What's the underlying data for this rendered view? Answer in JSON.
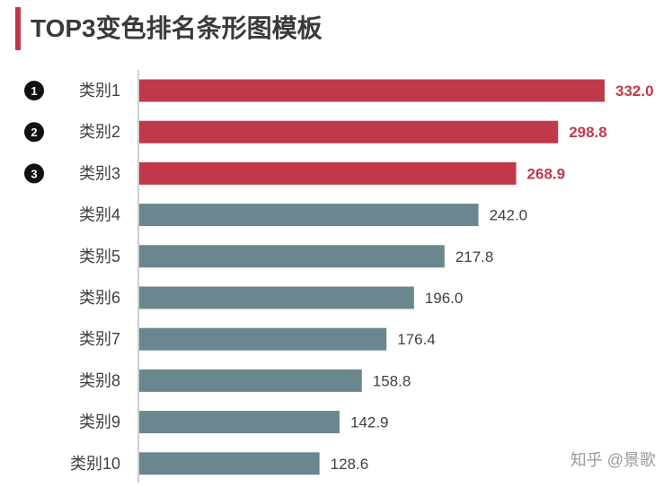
{
  "header": {
    "title": "TOP3变色排名条形图模板"
  },
  "watermark": "知乎 @景歌",
  "colors": {
    "top": "#c0394b",
    "rest": "#6a878f",
    "axis": "#bfbfbf",
    "title_bar": "#c0394b"
  },
  "chart_data": {
    "type": "bar",
    "orientation": "horizontal",
    "title": "TOP3变色排名条形图模板",
    "categories": [
      "类别1",
      "类别2",
      "类别3",
      "类别4",
      "类别5",
      "类别6",
      "类别7",
      "类别8",
      "类别9",
      "类别10"
    ],
    "values": [
      332.0,
      298.8,
      268.9,
      242.0,
      217.8,
      196.0,
      176.4,
      158.8,
      142.9,
      128.6
    ],
    "value_labels": [
      "332.0",
      "298.8",
      "268.9",
      "242.0",
      "217.8",
      "196.0",
      "176.4",
      "158.8",
      "142.9",
      "128.6"
    ],
    "highlight_top_n": 3,
    "rank_badges": [
      "1",
      "2",
      "3"
    ],
    "xlim": [
      0,
      332
    ],
    "grid": false,
    "legend": "none"
  }
}
